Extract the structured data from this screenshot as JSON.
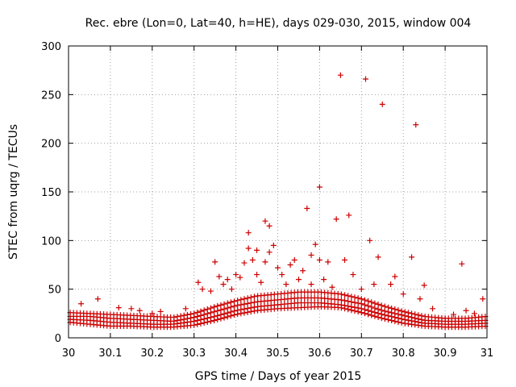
{
  "chart_data": {
    "type": "scatter",
    "title": "Rec. ebre (Lon=0, Lat=40, h=HE), days 029-030, 2015, window 004",
    "xlabel": "GPS time / Days of year 2015",
    "ylabel": "STEC from uqrg / TECUs",
    "xlim": [
      30,
      31
    ],
    "ylim": [
      0,
      300
    ],
    "xticks": [
      30,
      30.1,
      30.2,
      30.3,
      30.4,
      30.5,
      30.6,
      30.7,
      30.8,
      30.9,
      31
    ],
    "xtick_labels": [
      "30",
      "30.1",
      "30.2",
      "30.3",
      "30.4",
      "30.5",
      "30.6",
      "30.7",
      "30.8",
      "30.9",
      "31"
    ],
    "yticks": [
      0,
      50,
      100,
      150,
      200,
      250,
      300
    ],
    "ytick_labels": [
      "0",
      "50",
      "100",
      "150",
      "200",
      "250",
      "300"
    ],
    "grid": true,
    "marker": "+",
    "color": "#cc0000",
    "baseline_traces": [
      {
        "name": "trace-1",
        "x": [
          30.0,
          30.05,
          30.1,
          30.15,
          30.2,
          30.25,
          30.3,
          30.35,
          30.4,
          30.45,
          30.5,
          30.55,
          30.6,
          30.65,
          30.7,
          30.75,
          30.8,
          30.85,
          30.9,
          30.95,
          31.0
        ],
        "y": [
          16,
          14,
          12,
          12,
          11,
          11,
          13,
          18,
          24,
          28,
          30,
          31,
          32,
          31,
          26,
          20,
          15,
          12,
          11,
          11,
          12
        ]
      },
      {
        "name": "trace-2",
        "x": [
          30.0,
          30.05,
          30.1,
          30.15,
          30.2,
          30.25,
          30.3,
          30.35,
          30.4,
          30.45,
          30.5,
          30.55,
          30.6,
          30.65,
          30.7,
          30.75,
          30.8,
          30.85,
          30.9,
          30.95,
          31.0
        ],
        "y": [
          19,
          18,
          16,
          15,
          14,
          14,
          17,
          22,
          28,
          32,
          34,
          36,
          36,
          34,
          30,
          24,
          19,
          15,
          14,
          14,
          15
        ]
      },
      {
        "name": "trace-3",
        "x": [
          30.0,
          30.05,
          30.1,
          30.15,
          30.2,
          30.25,
          30.3,
          30.35,
          30.4,
          30.45,
          30.5,
          30.55,
          30.6,
          30.65,
          30.7,
          30.75,
          30.8,
          30.85,
          30.9,
          30.95,
          31.0
        ],
        "y": [
          22,
          22,
          20,
          19,
          18,
          17,
          21,
          27,
          33,
          37,
          39,
          41,
          41,
          39,
          35,
          28,
          23,
          18,
          17,
          17,
          18
        ]
      },
      {
        "name": "trace-4",
        "x": [
          30.0,
          30.05,
          30.1,
          30.15,
          30.2,
          30.25,
          30.3,
          30.35,
          30.4,
          30.45,
          30.5,
          30.55,
          30.6,
          30.65,
          30.7,
          30.75,
          30.8,
          30.85,
          30.9,
          30.95,
          31.0
        ],
        "y": [
          26,
          25,
          24,
          23,
          22,
          21,
          25,
          32,
          38,
          43,
          45,
          47,
          47,
          45,
          40,
          33,
          27,
          22,
          20,
          20,
          22
        ]
      }
    ],
    "scattered_points": {
      "x": [
        30.03,
        30.07,
        30.12,
        30.15,
        30.17,
        30.2,
        30.22,
        30.28,
        30.31,
        30.32,
        30.34,
        30.35,
        30.36,
        30.37,
        30.38,
        30.39,
        30.4,
        30.41,
        30.42,
        30.43,
        30.43,
        30.44,
        30.45,
        30.45,
        30.46,
        30.47,
        30.47,
        30.48,
        30.48,
        30.49,
        30.5,
        30.51,
        30.52,
        30.53,
        30.54,
        30.55,
        30.56,
        30.57,
        30.58,
        30.58,
        30.59,
        30.6,
        30.6,
        30.61,
        30.62,
        30.63,
        30.64,
        30.65,
        30.66,
        30.67,
        30.68,
        30.7,
        30.71,
        30.72,
        30.73,
        30.74,
        30.75,
        30.77,
        30.78,
        30.8,
        30.82,
        30.83,
        30.84,
        30.85,
        30.87,
        30.9,
        30.92,
        30.94,
        30.95,
        30.97,
        30.99
      ],
      "y": [
        35,
        40,
        31,
        30,
        28,
        25,
        27,
        30,
        57,
        50,
        48,
        78,
        63,
        55,
        60,
        50,
        65,
        62,
        77,
        108,
        92,
        80,
        65,
        90,
        57,
        120,
        78,
        115,
        88,
        95,
        72,
        65,
        55,
        75,
        80,
        60,
        69,
        133,
        85,
        55,
        96,
        155,
        80,
        60,
        78,
        52,
        122,
        270,
        80,
        126,
        65,
        50,
        266,
        100,
        55,
        83,
        240,
        55,
        63,
        45,
        83,
        219,
        40,
        54,
        30,
        20,
        24,
        76,
        28,
        25,
        40
      ]
    }
  }
}
